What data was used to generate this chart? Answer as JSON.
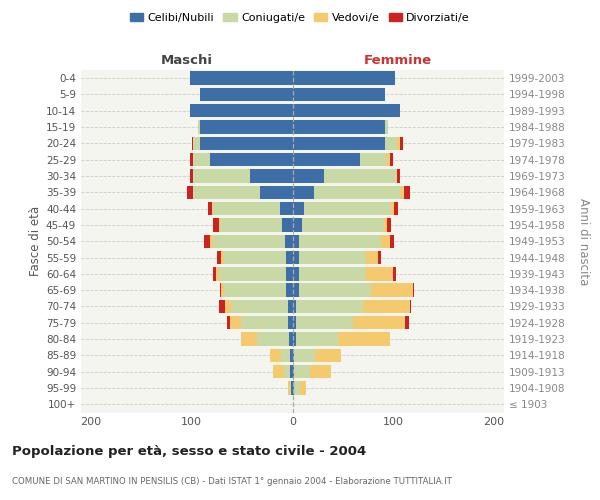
{
  "age_groups": [
    "100+",
    "95-99",
    "90-94",
    "85-89",
    "80-84",
    "75-79",
    "70-74",
    "65-69",
    "60-64",
    "55-59",
    "50-54",
    "45-49",
    "40-44",
    "35-39",
    "30-34",
    "25-29",
    "20-24",
    "15-19",
    "10-14",
    "5-9",
    "0-4"
  ],
  "birth_years": [
    "≤ 1903",
    "1904-1908",
    "1909-1913",
    "1914-1918",
    "1919-1923",
    "1924-1928",
    "1929-1933",
    "1934-1938",
    "1939-1943",
    "1944-1948",
    "1949-1953",
    "1954-1958",
    "1959-1963",
    "1964-1968",
    "1969-1973",
    "1974-1978",
    "1979-1983",
    "1984-1988",
    "1989-1993",
    "1994-1998",
    "1999-2003"
  ],
  "males_celibi": [
    0,
    1,
    2,
    2,
    3,
    4,
    4,
    6,
    6,
    6,
    7,
    10,
    12,
    32,
    42,
    82,
    92,
    92,
    102,
    92,
    102
  ],
  "males_coniugati": [
    0,
    1,
    6,
    9,
    32,
    47,
    57,
    62,
    67,
    62,
    72,
    62,
    67,
    67,
    57,
    17,
    7,
    2,
    0,
    0,
    0
  ],
  "males_vedovi": [
    0,
    2,
    11,
    11,
    16,
    11,
    6,
    3,
    3,
    3,
    3,
    1,
    1,
    0,
    0,
    0,
    0,
    0,
    0,
    0,
    0
  ],
  "males_divorziati": [
    0,
    0,
    0,
    0,
    0,
    3,
    6,
    1,
    3,
    4,
    6,
    6,
    4,
    6,
    3,
    3,
    1,
    0,
    0,
    0,
    0
  ],
  "females_nubili": [
    0,
    1,
    1,
    1,
    3,
    3,
    3,
    6,
    6,
    6,
    6,
    9,
    11,
    21,
    31,
    67,
    92,
    92,
    107,
    92,
    102
  ],
  "females_coniugate": [
    0,
    6,
    16,
    21,
    42,
    57,
    67,
    72,
    67,
    67,
    82,
    82,
    87,
    87,
    72,
    27,
    12,
    3,
    0,
    0,
    0
  ],
  "females_vedove": [
    0,
    6,
    21,
    26,
    52,
    52,
    47,
    42,
    27,
    12,
    9,
    3,
    3,
    3,
    1,
    3,
    3,
    0,
    0,
    0,
    0
  ],
  "females_divorziate": [
    0,
    0,
    0,
    0,
    0,
    4,
    1,
    1,
    3,
    3,
    4,
    4,
    4,
    6,
    3,
    3,
    3,
    0,
    0,
    0,
    0
  ],
  "color_celibi": "#3d6ea8",
  "color_coniugati": "#c8d9a5",
  "color_vedovi": "#f5c96e",
  "color_divorziati": "#cc2222",
  "title": "Popolazione per età, sesso e stato civile - 2004",
  "subtitle": "COMUNE DI SAN MARTINO IN PENSILIS (CB) - Dati ISTAT 1° gennaio 2004 - Elaborazione TUTTITALIA.IT",
  "xlim": 210,
  "ylabel_left": "Fasce di età",
  "ylabel_right": "Anni di nascita",
  "label_maschi": "Maschi",
  "label_femmine": "Femmine",
  "legend_labels": [
    "Celibi/Nubili",
    "Coniugati/e",
    "Vedovi/e",
    "Divorziati/e"
  ],
  "bg_color": "#f5f5f0"
}
